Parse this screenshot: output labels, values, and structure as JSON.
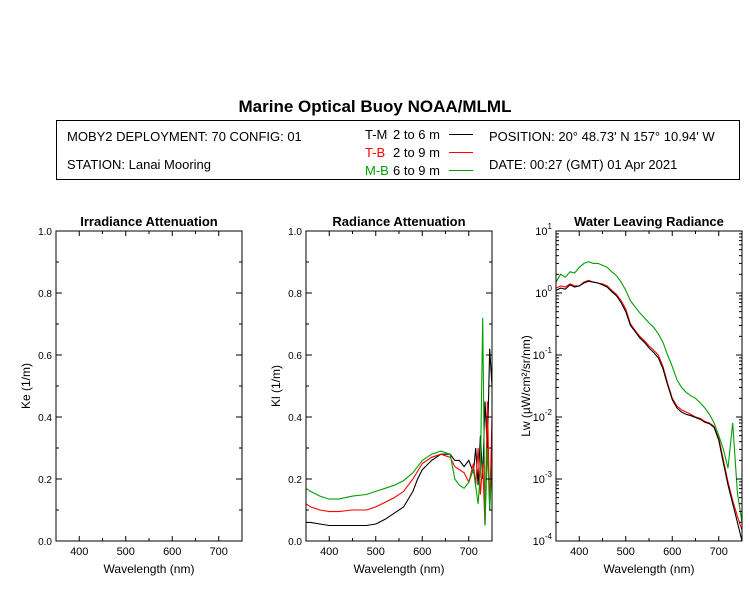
{
  "header": {
    "title": "Marine Optical Buoy NOAA/MLML",
    "deployment": "MOBY2 DEPLOYMENT: 70 CONFIG: 01",
    "station": "STATION: Lanai Mooring",
    "position": "POSITION: 20° 48.73' N   157° 10.94' W",
    "date": "DATE: 00:27 (GMT) 01 Apr 2021",
    "legend": [
      {
        "code": "T-M",
        "range": "2 to 6  m",
        "color": "#000000"
      },
      {
        "code": "T-B",
        "range": "2 to 9  m",
        "color": "#ff0000"
      },
      {
        "code": "M-B",
        "range": "6 to 9  m",
        "color": "#00a000"
      }
    ]
  },
  "chart_data": [
    {
      "type": "line",
      "title": "Irradiance Attenuation",
      "xlabel": "Wavelength (nm)",
      "ylabel": "Ke  (1/m)",
      "xlim": [
        350,
        750
      ],
      "ylim": [
        0,
        1.0
      ],
      "x_ticks": [
        "400",
        "500",
        "600",
        "700"
      ],
      "y_ticks": [
        "0.0",
        "0.2",
        "0.4",
        "0.6",
        "0.8",
        "1.0"
      ],
      "series": []
    },
    {
      "type": "line",
      "title": "Radiance Attenuation",
      "xlabel": "Wavelength (nm)",
      "ylabel": "Kl  (1/m)",
      "xlim": [
        350,
        750
      ],
      "ylim": [
        0,
        1.0
      ],
      "x_ticks": [
        "400",
        "500",
        "600",
        "700"
      ],
      "y_ticks": [
        "0.0",
        "0.2",
        "0.4",
        "0.6",
        "0.8",
        "1.0"
      ],
      "series": [
        {
          "color": "#000000",
          "x": [
            350,
            360,
            380,
            400,
            420,
            450,
            480,
            500,
            520,
            540,
            560,
            580,
            590,
            600,
            610,
            620,
            640,
            660,
            670,
            680,
            690,
            700,
            710,
            715,
            720,
            725,
            730,
            735,
            740,
            745,
            750
          ],
          "y": [
            0.06,
            0.06,
            0.055,
            0.05,
            0.05,
            0.05,
            0.05,
            0.055,
            0.07,
            0.09,
            0.11,
            0.16,
            0.2,
            0.23,
            0.245,
            0.26,
            0.28,
            0.28,
            0.26,
            0.26,
            0.24,
            0.26,
            0.22,
            0.3,
            0.18,
            0.34,
            0.2,
            0.45,
            0.3,
            0.62,
            0.5
          ]
        },
        {
          "color": "#ff0000",
          "x": [
            350,
            360,
            380,
            400,
            420,
            450,
            480,
            500,
            520,
            540,
            560,
            580,
            600,
            620,
            640,
            660,
            670,
            680,
            690,
            700,
            710,
            715,
            720,
            725,
            730,
            735,
            740,
            745,
            750
          ],
          "y": [
            0.12,
            0.11,
            0.1,
            0.095,
            0.095,
            0.1,
            0.1,
            0.11,
            0.125,
            0.14,
            0.16,
            0.2,
            0.25,
            0.27,
            0.28,
            0.27,
            0.24,
            0.23,
            0.22,
            0.19,
            0.25,
            0.18,
            0.3,
            0.15,
            0.25,
            0.05,
            0.45,
            0.1,
            0.4
          ]
        },
        {
          "color": "#00a000",
          "x": [
            350,
            360,
            380,
            400,
            420,
            450,
            480,
            500,
            520,
            540,
            560,
            580,
            600,
            620,
            640,
            660,
            670,
            680,
            690,
            700,
            710,
            720,
            725,
            730,
            735,
            740,
            745,
            750
          ],
          "y": [
            0.17,
            0.16,
            0.145,
            0.135,
            0.135,
            0.145,
            0.15,
            0.16,
            0.17,
            0.18,
            0.195,
            0.22,
            0.26,
            0.28,
            0.29,
            0.28,
            0.2,
            0.18,
            0.17,
            0.19,
            0.23,
            0.12,
            0.22,
            0.72,
            0.05,
            0.3,
            0.1,
            0.25
          ]
        }
      ]
    },
    {
      "type": "line",
      "title": "Water Leaving Radiance",
      "xlabel": "Wavelength (nm)",
      "ylabel": "Lw  (µW/cm²/sr/nm)",
      "yscale": "log",
      "xlim": [
        350,
        750
      ],
      "ylim": [
        0.0001,
        10
      ],
      "x_ticks": [
        "400",
        "500",
        "600",
        "700"
      ],
      "y_ticks": [
        {
          "base": "10",
          "exp": "1",
          "v": 10
        },
        {
          "base": "10",
          "exp": "0",
          "v": 1
        },
        {
          "base": "10",
          "exp": "-1",
          "v": 0.1
        },
        {
          "base": "10",
          "exp": "-2",
          "v": 0.01
        },
        {
          "base": "10",
          "exp": "-3",
          "v": 0.001
        },
        {
          "base": "10",
          "exp": "-4",
          "v": 0.0001
        }
      ],
      "series": [
        {
          "color": "#ff0000",
          "x": [
            350,
            360,
            370,
            380,
            390,
            400,
            410,
            420,
            430,
            440,
            450,
            460,
            470,
            480,
            490,
            500,
            510,
            520,
            530,
            540,
            550,
            560,
            570,
            580,
            590,
            600,
            610,
            620,
            630,
            640,
            650,
            660,
            670,
            680,
            690,
            700,
            710,
            720,
            730,
            740,
            750
          ],
          "y": [
            1.2,
            1.3,
            1.25,
            1.4,
            1.3,
            1.3,
            1.5,
            1.6,
            1.5,
            1.45,
            1.4,
            1.3,
            1.1,
            0.95,
            0.75,
            0.55,
            0.32,
            0.25,
            0.2,
            0.17,
            0.14,
            0.12,
            0.1,
            0.065,
            0.035,
            0.02,
            0.015,
            0.013,
            0.012,
            0.011,
            0.01,
            0.0095,
            0.0085,
            0.008,
            0.007,
            0.0045,
            0.002,
            0.0009,
            0.00045,
            0.00025,
            0.00015
          ]
        },
        {
          "color": "#000000",
          "x": [
            350,
            360,
            370,
            380,
            390,
            400,
            410,
            420,
            430,
            440,
            450,
            460,
            470,
            480,
            490,
            500,
            510,
            520,
            530,
            540,
            550,
            560,
            570,
            580,
            590,
            600,
            610,
            620,
            630,
            640,
            650,
            660,
            670,
            680,
            690,
            700,
            710,
            720,
            730,
            740,
            750
          ],
          "y": [
            1.1,
            1.2,
            1.15,
            1.35,
            1.25,
            1.3,
            1.45,
            1.55,
            1.5,
            1.45,
            1.35,
            1.25,
            1.05,
            0.9,
            0.7,
            0.5,
            0.3,
            0.24,
            0.19,
            0.16,
            0.13,
            0.11,
            0.09,
            0.06,
            0.033,
            0.019,
            0.014,
            0.012,
            0.011,
            0.0105,
            0.0098,
            0.0092,
            0.0082,
            0.0078,
            0.0068,
            0.0042,
            0.0018,
            0.0008,
            0.0004,
            0.0002,
            0.0001
          ]
        },
        {
          "color": "#00a000",
          "x": [
            350,
            360,
            370,
            380,
            390,
            400,
            410,
            420,
            430,
            440,
            450,
            460,
            470,
            480,
            490,
            500,
            510,
            520,
            530,
            540,
            550,
            560,
            570,
            580,
            590,
            600,
            610,
            620,
            630,
            640,
            650,
            660,
            670,
            680,
            690,
            700,
            710,
            720,
            730,
            740,
            750
          ],
          "y": [
            1.5,
            2.0,
            1.8,
            2.2,
            2.1,
            2.6,
            3.0,
            3.2,
            3.0,
            3.0,
            2.8,
            2.6,
            2.2,
            1.9,
            1.5,
            1.1,
            0.75,
            0.6,
            0.48,
            0.4,
            0.33,
            0.28,
            0.22,
            0.16,
            0.1,
            0.065,
            0.04,
            0.03,
            0.025,
            0.022,
            0.02,
            0.017,
            0.014,
            0.011,
            0.008,
            0.005,
            0.003,
            0.0015,
            0.008,
            0.0006,
            0.0002
          ]
        }
      ]
    }
  ]
}
